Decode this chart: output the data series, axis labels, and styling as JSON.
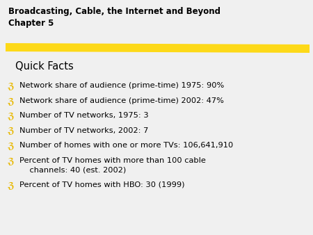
{
  "title_line1": "Broadcasting, Cable, the Internet and Beyond",
  "title_line2": "Chapter 5",
  "subtitle": "Quick Facts",
  "bullet_char": "ℨ",
  "bullet_color": "#E8B800",
  "bullet_items": [
    "Network share of audience (prime-time) 1975: 90%",
    "Network share of audience (prime-time) 2002: 47%",
    "Number of TV networks, 1975: 3",
    "Number of TV networks, 2002: 7",
    "Number of homes with one or more TVs: 106,641,910",
    "Percent of TV homes with more than 100 cable\n    channels: 40 (est. 2002)",
    "Percent of TV homes with HBO: 30 (1999)"
  ],
  "background_color": "#f0f0f0",
  "title_color": "#000000",
  "text_color": "#000000",
  "stripe_color": "#FFD700",
  "title_fontsize": 8.5,
  "subtitle_fontsize": 10.5,
  "bullet_fontsize": 8.2
}
